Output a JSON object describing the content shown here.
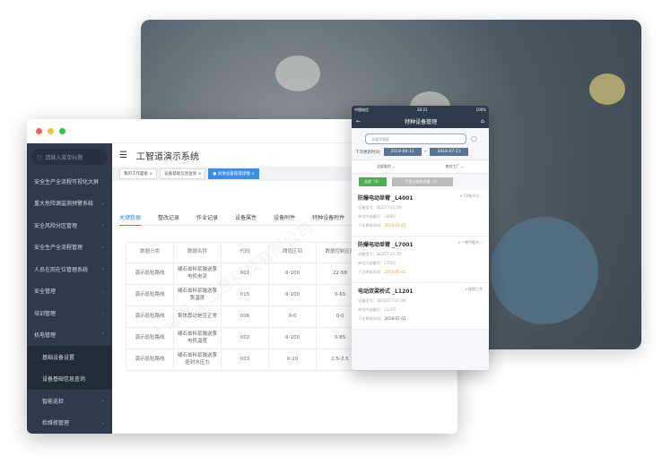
{
  "desktop": {
    "app_title": "工智道演示系统",
    "search_placeholder": "请输入菜单标题",
    "sidebar": [
      {
        "label": "安全生产全流程可视化大屏",
        "chev": ""
      },
      {
        "label": "重大危险源监测预警系统",
        "chev": "⌄"
      },
      {
        "label": "安全风险分区管理",
        "chev": "⌄"
      },
      {
        "label": "安全生产全流程管理",
        "chev": "⌄"
      },
      {
        "label": "人员在岗在位管理系统",
        "chev": "⌄"
      },
      {
        "label": "安全管理",
        "chev": "⌄"
      },
      {
        "label": "培训管理",
        "chev": "⌄"
      },
      {
        "label": "机电管理",
        "chev": "⌃"
      },
      {
        "label": "基础设备设置",
        "chev": ""
      },
      {
        "label": "设备基础信息查询",
        "chev": ""
      },
      {
        "label": "智能巡检",
        "chev": "⌄"
      },
      {
        "label": "检维修管理",
        "chev": "⌄"
      }
    ],
    "open_tabs": [
      "我的工作面板 ×",
      "设备基础信息查询 ×",
      "● 具体设备管理详情 ×"
    ],
    "content_tabs": [
      "关键数据",
      "整改记录",
      "作业记录",
      "设备属性",
      "设备附件",
      "特种设备附件"
    ],
    "table": {
      "headers": [
        "数据分类",
        "数据名称",
        "代码",
        "阈值区间",
        "数据控制区间"
      ],
      "rows": [
        [
          "演示巡检路线",
          "磷石膏料浆输送泵电机电流",
          "001",
          "0-100",
          "22-58"
        ],
        [
          "演示巡检路线",
          "磷石膏料浆输送泵泵温度",
          "015",
          "0-100",
          "0-65"
        ],
        [
          "演示巡检路线",
          "泵体震动是否正常",
          "006",
          "0-0",
          "0-0"
        ],
        [
          "演示巡检路线",
          "磷石膏料浆输送泵电机温度",
          "002",
          "0-100",
          "0-85"
        ],
        [
          "演示巡检路线",
          "磷石膏料浆输送泵密封水压力",
          "003",
          "0-10",
          "1.5-3.5"
        ]
      ]
    }
  },
  "mobile": {
    "status_left": "中国电信",
    "status_time": "20:21",
    "status_right": "100%",
    "title": "特种设备管理",
    "search_placeholder": "关键字搜索",
    "date_label": "下次更新时间:",
    "date_from": "2018-04-11",
    "date_sep": "~",
    "date_to": "2018-07-11",
    "filter_category": "全部类别",
    "filter_factory": "南京工厂",
    "btn_all": "全部（3）",
    "btn_expiring": "只显示临检设备（2）",
    "items": [
      {
        "name": "防爆电动单臂 _L4001",
        "location": "C0装冷分...",
        "model": "设备型号：BLD5T-14.5M",
        "code": "单位内部编号：L4001",
        "next_label": "下次更新时间：",
        "next": "2018-05-01",
        "warn": true
      },
      {
        "name": "防爆电动单臂 _L7001",
        "location": "一期甲氨合...",
        "model": "设备型号：BLD5T-22.5M",
        "code": "单位内部编号：L7001",
        "next_label": "下次更新时间：",
        "next": "2018-05-01",
        "warn": true
      },
      {
        "name": "电动双梁桥式 _L1201",
        "location": "精馏工序",
        "model": "设备型号：QD32/5T-25.5M",
        "code": "单位内部编号：L1201",
        "next_label": "下次更新时间：",
        "next": "2018-07-01",
        "warn": false
      }
    ]
  },
  "watermark": "上海界工信息科技有限公司",
  "colors": {
    "sidebar": "#2f3b4c",
    "accent": "#3a8ee6",
    "phone_bar": "#2f3a4d",
    "warn": "#e6a23c",
    "green": "#4caf50"
  }
}
